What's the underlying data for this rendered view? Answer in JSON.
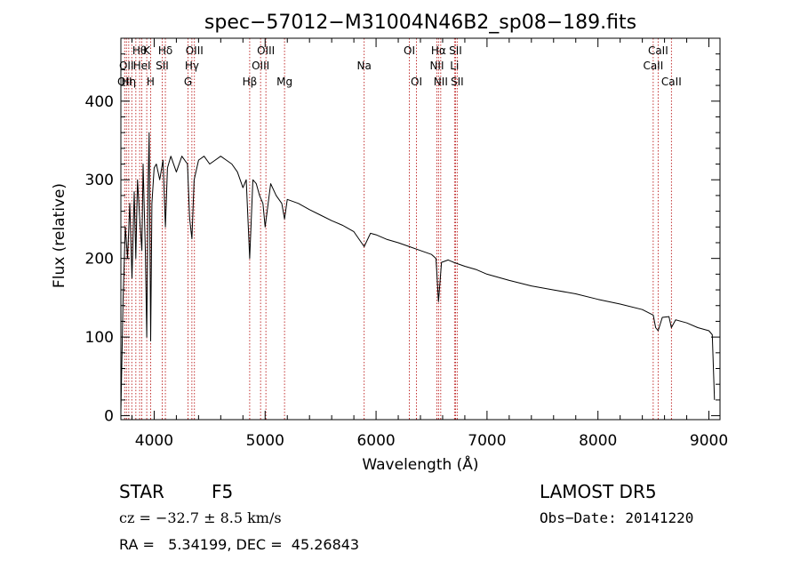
{
  "chart_data": {
    "type": "line",
    "title": "spec−57012−M31004N46B2_sp08−189.fits",
    "xlabel": "Wavelength (Å)",
    "ylabel": "Flux (relative)",
    "xlim": [
      3700,
      9100
    ],
    "ylim": [
      -5,
      480
    ],
    "xticks": [
      4000,
      5000,
      6000,
      7000,
      8000,
      9000
    ],
    "yticks": [
      0,
      100,
      200,
      300,
      400
    ],
    "series": [
      {
        "x": [
          3700,
          3720,
          3740,
          3760,
          3780,
          3800,
          3820,
          3835,
          3850,
          3870,
          3889,
          3900,
          3920,
          3933,
          3945,
          3955,
          3968,
          3980,
          4000,
          4020,
          4050,
          4080,
          4101,
          4120,
          4150,
          4200,
          4250,
          4300,
          4320,
          4340,
          4360,
          4400,
          4450,
          4500,
          4550,
          4600,
          4650,
          4700,
          4750,
          4800,
          4830,
          4861,
          4890,
          4920,
          4950,
          4980,
          5000,
          5050,
          5100,
          5150,
          5175,
          5200,
          5300,
          5400,
          5500,
          5600,
          5700,
          5800,
          5893,
          5950,
          6000,
          6100,
          6200,
          6300,
          6400,
          6500,
          6540,
          6563,
          6590,
          6650,
          6700,
          6800,
          6900,
          7000,
          7200,
          7400,
          7600,
          7800,
          8000,
          8200,
          8400,
          8498,
          8520,
          8542,
          8580,
          8640,
          8662,
          8700,
          8800,
          8900,
          9000,
          9030,
          9050
        ],
        "y": [
          5,
          150,
          240,
          200,
          270,
          175,
          285,
          200,
          300,
          250,
          210,
          320,
          210,
          100,
          290,
          360,
          95,
          270,
          315,
          320,
          300,
          325,
          240,
          315,
          330,
          310,
          330,
          320,
          250,
          225,
          300,
          325,
          330,
          320,
          325,
          330,
          325,
          320,
          310,
          290,
          300,
          200,
          300,
          295,
          280,
          270,
          240,
          295,
          280,
          270,
          250,
          275,
          270,
          262,
          255,
          248,
          242,
          234,
          215,
          232,
          230,
          224,
          220,
          215,
          210,
          205,
          200,
          145,
          195,
          198,
          195,
          190,
          186,
          180,
          172,
          165,
          160,
          155,
          148,
          142,
          135,
          128,
          112,
          108,
          125,
          126,
          112,
          122,
          118,
          112,
          108,
          103,
          20
        ]
      }
    ],
    "lines": [
      {
        "x": 3734,
        "labels": [
          "",
          "",
          "OII"
        ]
      },
      {
        "x": 3750,
        "labels": [
          "",
          "OII",
          ""
        ]
      },
      {
        "x": 3771,
        "labels": [
          "",
          "",
          "Hη"
        ]
      },
      {
        "x": 3798,
        "labels": [
          "",
          "",
          ""
        ]
      },
      {
        "x": 3835,
        "labels": [
          "",
          "",
          ""
        ]
      },
      {
        "x": 3869,
        "labels": [
          "Hθ",
          "",
          ""
        ]
      },
      {
        "x": 3889,
        "labels": [
          "",
          "HeI",
          ""
        ]
      },
      {
        "x": 3933,
        "labels": [
          "K",
          "",
          ""
        ]
      },
      {
        "x": 3968,
        "labels": [
          "",
          "",
          "H"
        ]
      },
      {
        "x": 4072,
        "labels": [
          "",
          "SII",
          ""
        ]
      },
      {
        "x": 4101,
        "labels": [
          "Hδ",
          "",
          ""
        ]
      },
      {
        "x": 4305,
        "labels": [
          "",
          "",
          "G"
        ]
      },
      {
        "x": 4340,
        "labels": [
          "",
          "Hγ",
          ""
        ]
      },
      {
        "x": 4363,
        "labels": [
          "OIII",
          "",
          ""
        ]
      },
      {
        "x": 4861,
        "labels": [
          "",
          "",
          "Hβ"
        ]
      },
      {
        "x": 4959,
        "labels": [
          "",
          "OIII",
          ""
        ]
      },
      {
        "x": 5007,
        "labels": [
          "OIII",
          "",
          ""
        ]
      },
      {
        "x": 5175,
        "labels": [
          "",
          "",
          "Mg"
        ]
      },
      {
        "x": 5893,
        "labels": [
          "",
          "Na",
          ""
        ]
      },
      {
        "x": 6300,
        "labels": [
          "OI",
          "",
          ""
        ]
      },
      {
        "x": 6364,
        "labels": [
          "",
          "",
          "OI"
        ]
      },
      {
        "x": 6548,
        "labels": [
          "",
          "NII",
          ""
        ]
      },
      {
        "x": 6563,
        "labels": [
          "Hα",
          "",
          ""
        ]
      },
      {
        "x": 6583,
        "labels": [
          "",
          "",
          "NII"
        ]
      },
      {
        "x": 6707,
        "labels": [
          "",
          "Li",
          ""
        ]
      },
      {
        "x": 6716,
        "labels": [
          "SII",
          "",
          ""
        ]
      },
      {
        "x": 6731,
        "labels": [
          "",
          "",
          "SII"
        ]
      },
      {
        "x": 8498,
        "labels": [
          "",
          "CaII",
          ""
        ]
      },
      {
        "x": 8542,
        "labels": [
          "CaII",
          "",
          ""
        ]
      },
      {
        "x": 8662,
        "labels": [
          "",
          "",
          "CaII"
        ]
      }
    ]
  },
  "info": {
    "object_class": "STAR",
    "subclass": "F5",
    "survey": "LAMOST DR5",
    "cz_label": "cz = −32.7 ± 8.5 km/s",
    "obs_date": "Obs−Date: 20141220",
    "coords": "RA =   5.34199, DEC =  45.26843"
  }
}
